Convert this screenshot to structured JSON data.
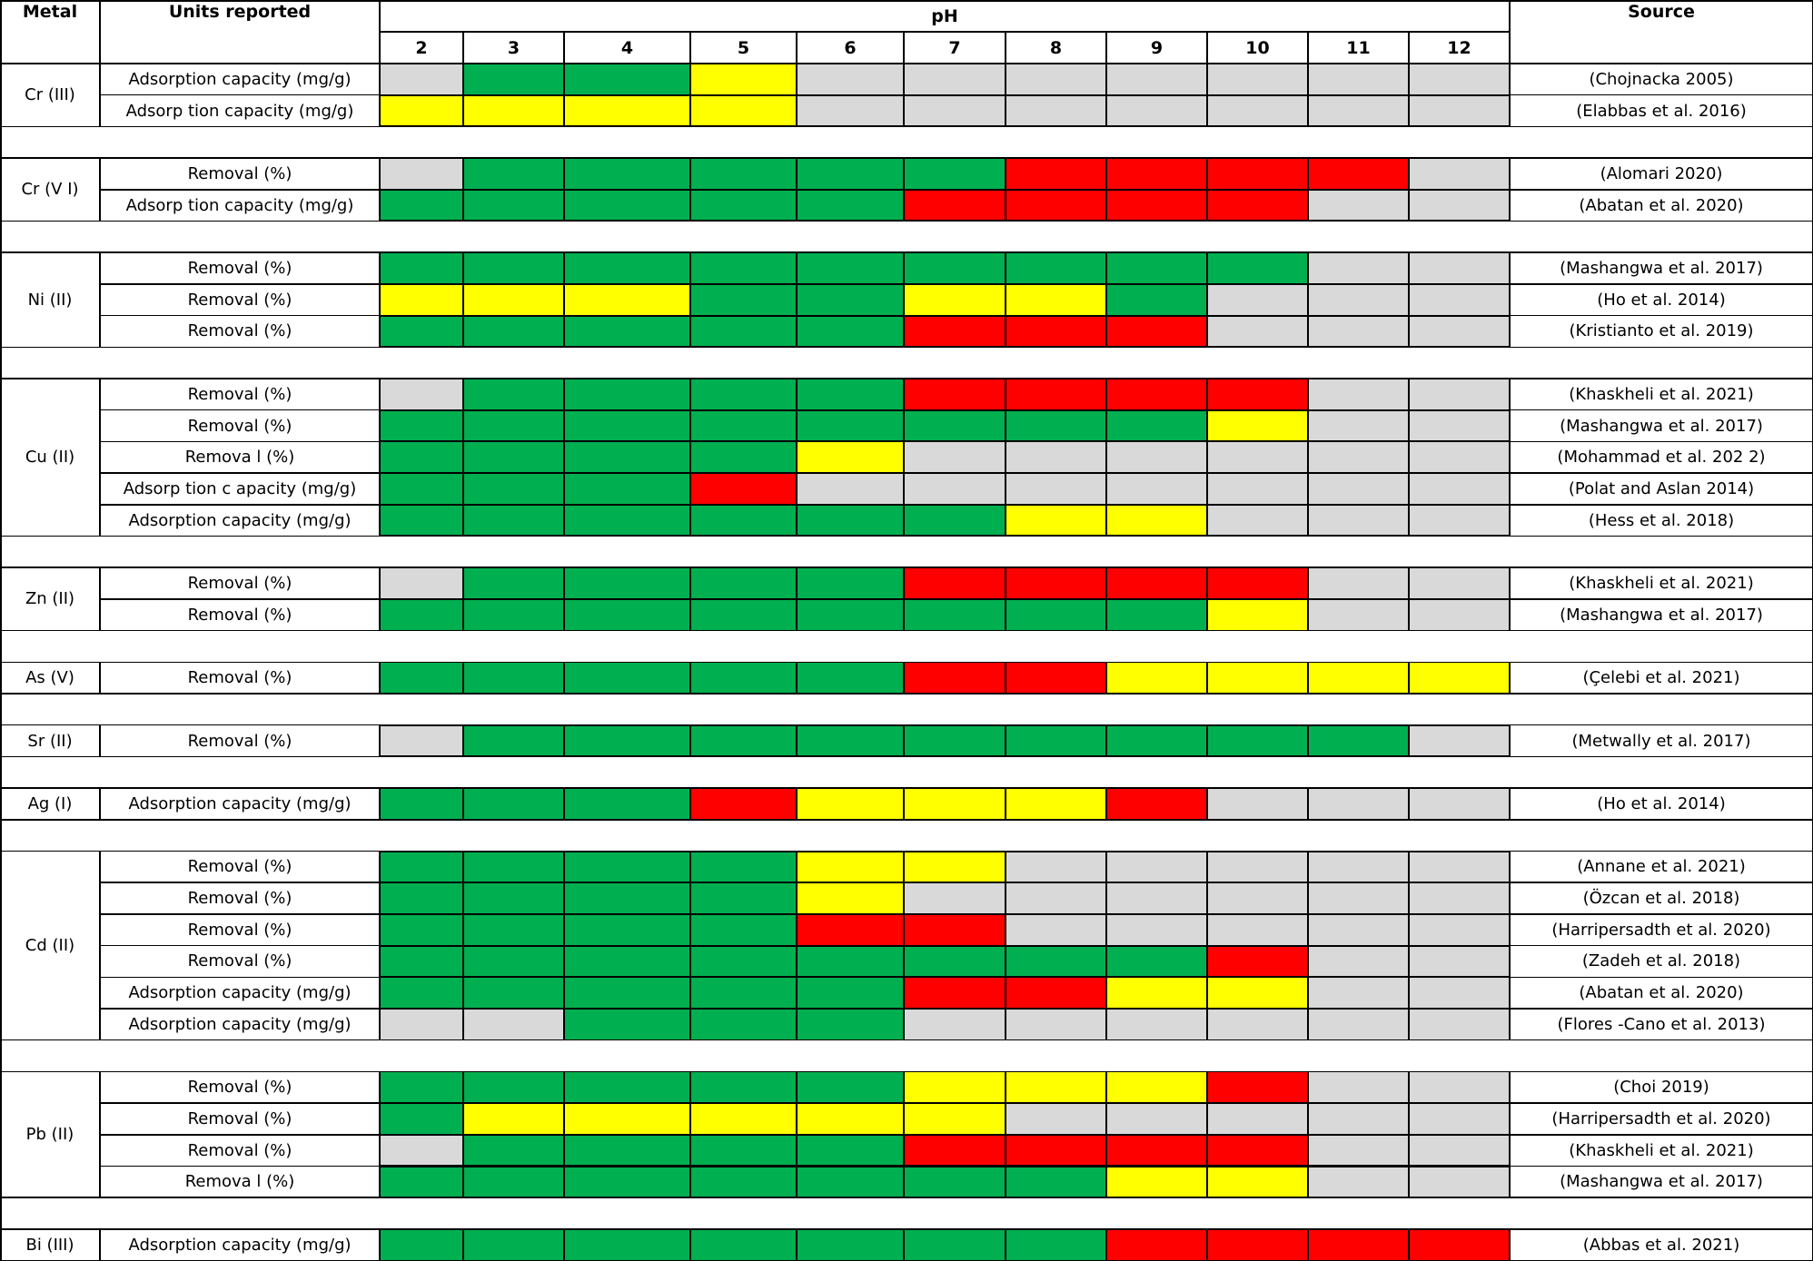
{
  "colors": {
    "G": "#00b050",
    "Y": "#ffff00",
    "R": "#ff0000",
    "N": "#d9d9d9"
  },
  "headers": {
    "metal": "Metal",
    "units": "Units reported",
    "ph": "pH",
    "source": "Source"
  },
  "ph_values": [
    "2",
    "3",
    "4",
    "5",
    "6",
    "7",
    "8",
    "9",
    "10",
    "11",
    "12"
  ],
  "groups": [
    {
      "metal": "Cr (III)",
      "rows": [
        {
          "units": "Adsorption capacity (mg/g)",
          "source": "(Chojnacka 2005)",
          "cells": "NGGYNNNNNNN"
        },
        {
          "units": "Adsorp tion capacity (mg/g)",
          "source": "(Elabbas et al. 2016)",
          "cells": "YYYYNNNNNNN"
        }
      ]
    },
    {
      "metal": "Cr (V  I)",
      "rows": [
        {
          "units": "Removal (%)",
          "source": "(Alomari 2020)",
          "cells": "NGGGGGRRRRN"
        },
        {
          "units": "Adsorp tion capacity (mg/g)",
          "source": "(Abatan et al. 2020)",
          "cells": "GGGGGRRRRNN"
        }
      ]
    },
    {
      "metal": "Ni  (II)",
      "rows": [
        {
          "units": "Removal (%)",
          "source": "(Mashangwa et al. 2017)",
          "cells": "GGGGGGGGGNN"
        },
        {
          "units": "Removal (%)",
          "source": "(Ho et al. 2014)",
          "cells": "YYYGGYYGNNN"
        },
        {
          "units": "Removal (%)",
          "source": "(Kristianto et al. 2019)",
          "cells": "GGGGGRRRNNN"
        }
      ]
    },
    {
      "metal": "Cu  (II)",
      "rows": [
        {
          "units": "Removal (%)",
          "source": "(Khaskheli et al. 2021)",
          "cells": "NGGGGRRRRNN"
        },
        {
          "units": "Removal (%)",
          "source": "(Mashangwa et al. 2017)",
          "cells": "GGGGGGGGYNN"
        },
        {
          "units": "Remova  l (%)",
          "source": "(Mohammad et al. 202    2)",
          "cells": "GGGGYNNNNNN"
        },
        {
          "units": "Adsorp tion c apacity (mg/g)",
          "source": "(Polat and Aslan 2014)",
          "cells": "GGGRNNNNNNN"
        },
        {
          "units": "Adsorption capacity (mg/g)",
          "source": "(Hess et al. 2018)",
          "cells": "GGGGGGYYNNN"
        }
      ]
    },
    {
      "metal": "Zn  (II)",
      "rows": [
        {
          "units": "Removal (%)",
          "source": "(Khaskheli et al. 2021)",
          "cells": "NGGGGRRRRNN"
        },
        {
          "units": "Removal (%)",
          "source": "(Mashangwa et al. 2017)",
          "cells": "GGGGGGGGYNN"
        }
      ]
    },
    {
      "metal": "As  (V)",
      "rows": [
        {
          "units": "Removal (%)",
          "source": "(Çelebi et al. 2021)",
          "cells": "GGGGGRRYYYY"
        }
      ]
    },
    {
      "metal": "Sr  (II)",
      "rows": [
        {
          "units": "Removal (%)",
          "source": "(Metwally   et al. 2017)",
          "cells": "NGGGGGGGGGN"
        }
      ]
    },
    {
      "metal": "Ag  (I)",
      "rows": [
        {
          "units": "Adsorption capacity (mg/g)",
          "source": "(Ho et al. 2014)",
          "cells": "GGGRYYYRNNN"
        }
      ]
    },
    {
      "metal": "Cd  (II)",
      "rows": [
        {
          "units": "Removal (%)",
          "source": "(Annane et al. 2021)",
          "cells": "GGGGYYNNNNN"
        },
        {
          "units": "Removal (%)",
          "source": "(Özcan et al. 2018)",
          "cells": "GGGGYNNNNNN"
        },
        {
          "units": "Removal (%)",
          "source": "(Harripersadth et al. 2020)",
          "cells": "GGGGRRNNNNN"
        },
        {
          "units": "Removal (%)",
          "source": "(Zadeh et al. 2018)",
          "cells": "GGGGGGGGRNN"
        },
        {
          "units": "Adsorption capacity (mg/g)",
          "source": "(Abatan et al. 2020)",
          "cells": "GGGGGRRYYNN"
        },
        {
          "units": "Adsorption capacity (mg/g)",
          "source": "(Flores  -Cano et al. 2013)",
          "cells": "NNGGGNNNNNN"
        }
      ]
    },
    {
      "metal": "Pb  (II)",
      "rows": [
        {
          "units": "Removal (%)",
          "source": "(Choi 2019)",
          "cells": "GGGGGYYYRNN"
        },
        {
          "units": "Removal (%)",
          "source": "(Harripersadth et al. 2020)",
          "cells": "GYYYYYNNNNN"
        },
        {
          "units": "Removal (%)",
          "source": "(Khaskheli et al. 2021)",
          "cells": "NGGGGRRRRNN"
        },
        {
          "units": "Remova  l (%)",
          "source": "(Mashangwa et al. 2017)",
          "cells": "GGGGGGGYYNN"
        }
      ]
    },
    {
      "metal": "Bi (III)",
      "rows": [
        {
          "units": "Adsorption capacity (mg/g)",
          "source": "(Abbas et al. 2021)",
          "cells": "GGGGGGGRRRR"
        }
      ]
    }
  ]
}
